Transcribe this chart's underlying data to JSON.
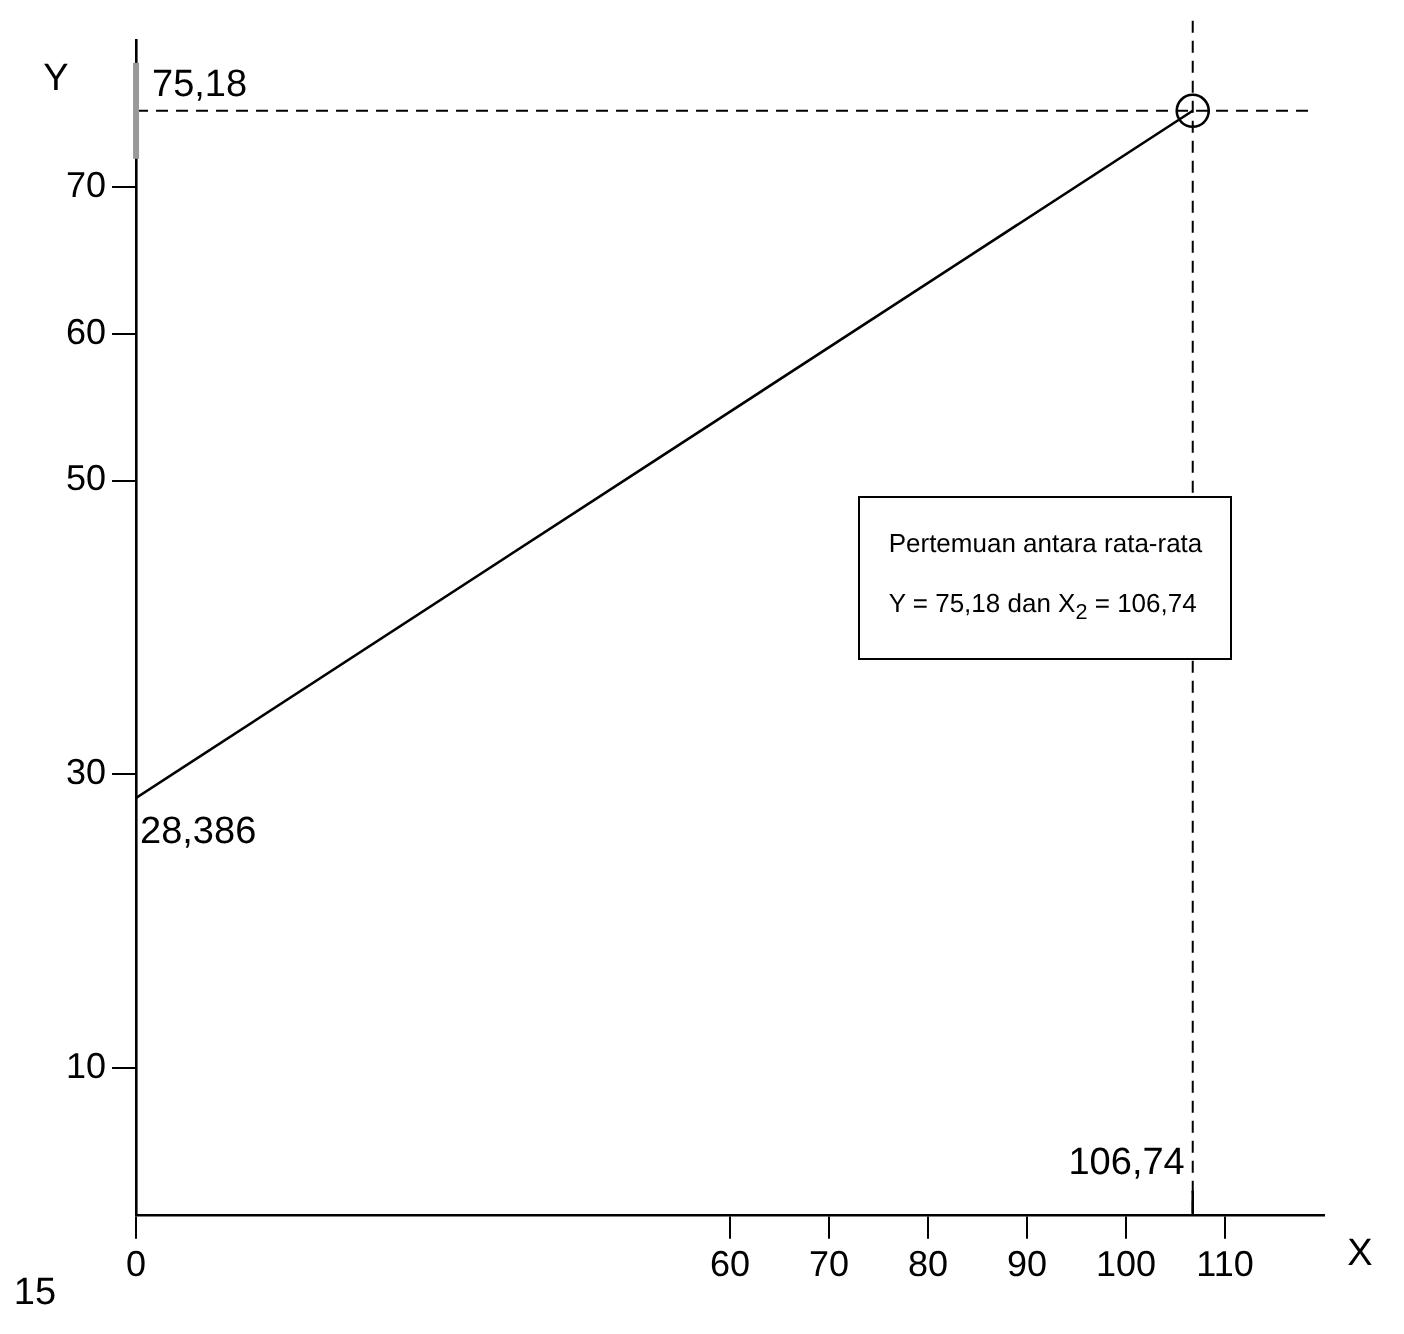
{
  "chart_data": {
    "type": "line",
    "xlabel": "X",
    "ylabel": "Y",
    "x": [
      0,
      106.74
    ],
    "series": [
      {
        "type": "line",
        "color": "#000000",
        "marker": "none",
        "values": [
          28.386,
          75.18
        ]
      },
      {
        "type": "scatter",
        "color": "#000000",
        "marker": "circle",
        "x": [
          106.74
        ],
        "values": [
          75.18
        ]
      }
    ],
    "xlim": [
      0,
      120
    ],
    "xticks": [
      0,
      60,
      70,
      80,
      90,
      100,
      110
    ],
    "ylim": [
      0,
      80
    ],
    "yticks": [
      10,
      30,
      50,
      60,
      70
    ],
    "grid": false,
    "legend": false,
    "ref_lines": [
      {
        "axis": "y",
        "value": 75.18,
        "label": "75,18",
        "line_style": "dashed"
      },
      {
        "axis": "x",
        "value": 106.74,
        "label": "106,74",
        "line_style": "dashed"
      }
    ],
    "annotations": [
      "15",
      "Pertemuan antara rata-rata",
      "Y = 75,18 dan X$_{2}$ = 106,74",
      {
        "text": "28,386",
        "x": 0,
        "y": 28.386
      }
    ]
  }
}
